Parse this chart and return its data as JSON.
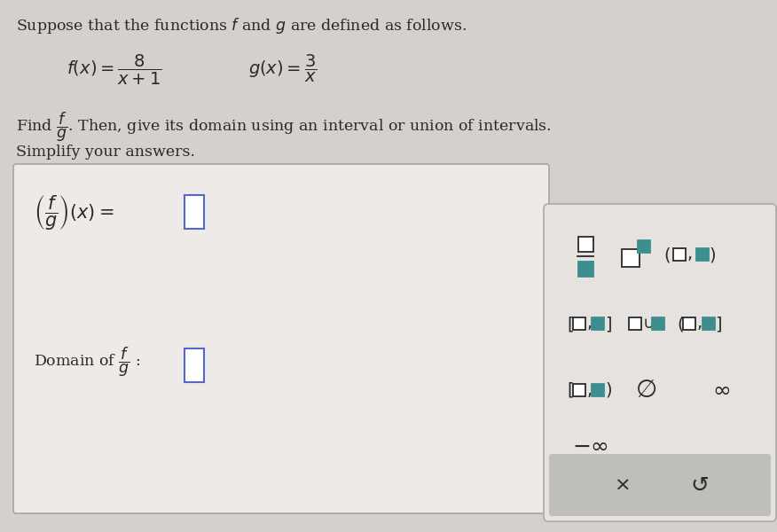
{
  "bg_color": "#d3d0ce",
  "main_box_color": "#eeeae8",
  "main_box_border": "#aaaaaa",
  "panel_bg": "#e5e2e0",
  "panel_border": "#aaaaaa",
  "teal_color": "#3d8f8f",
  "dark_color": "#2a2a2a",
  "blue_box_color": "#4455aa",
  "button_bg": "#c0bebb",
  "input_border_color": "#5566cc"
}
